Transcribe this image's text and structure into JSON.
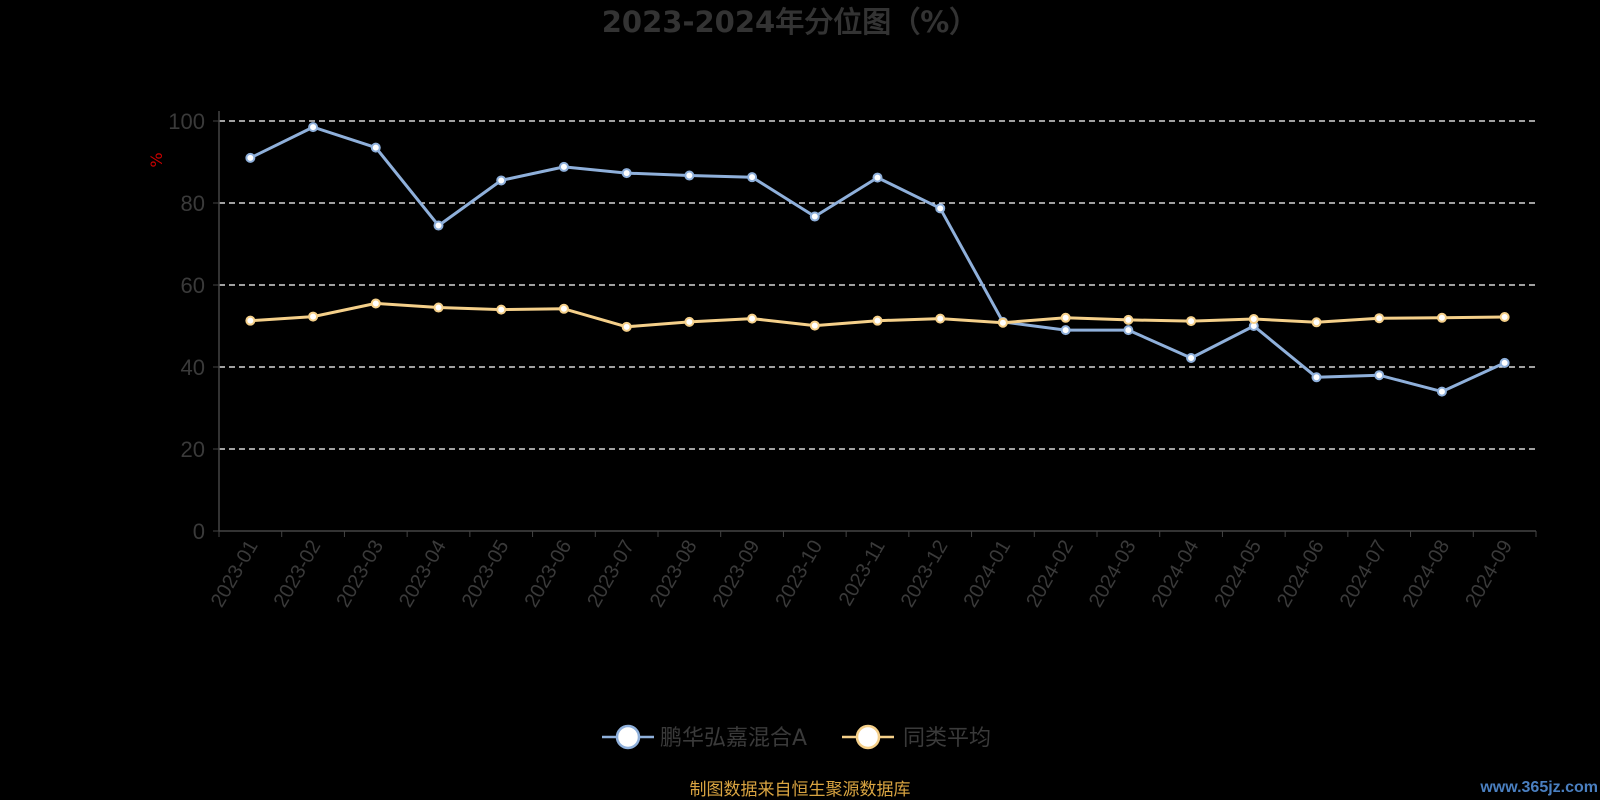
{
  "chart_data": {
    "type": "line",
    "title": "2023-2024年分位图（%）",
    "ylabel": "%",
    "ylim": [
      0,
      100
    ],
    "yticks": [
      "0",
      "20",
      "40",
      "60",
      "80",
      "100"
    ],
    "grid": true,
    "legend_position": "bottom",
    "categories": [
      "2023-01",
      "2023-02",
      "2023-03",
      "2023-04",
      "2023-05",
      "2023-06",
      "2023-07",
      "2023-08",
      "2023-09",
      "2023-10",
      "2023-11",
      "2023-12",
      "2024-01",
      "2024-02",
      "2024-03",
      "2024-04",
      "2024-05",
      "2024-06",
      "2024-07",
      "2024-08",
      "2024-09"
    ],
    "series": [
      {
        "name": "鹏华弘嘉混合A",
        "color": "#8fb0db",
        "values": [
          91,
          98.5,
          93.5,
          74.5,
          85.5,
          88.8,
          87.3,
          86.7,
          86.3,
          76.7,
          86.2,
          78.7,
          51,
          49,
          49,
          42.2,
          50,
          37.5,
          38,
          34,
          41
        ]
      },
      {
        "name": "同类平均",
        "color": "#f5d08a",
        "values": [
          51.3,
          52.3,
          55.5,
          54.5,
          54,
          54.2,
          49.8,
          51,
          51.8,
          50.1,
          51.3,
          51.8,
          50.8,
          52,
          51.5,
          51.2,
          51.7,
          50.9,
          51.9,
          52,
          52.2
        ]
      }
    ]
  },
  "footer": {
    "source": "制图数据来自恒生聚源数据库",
    "watermark": "www.365jz.com"
  }
}
